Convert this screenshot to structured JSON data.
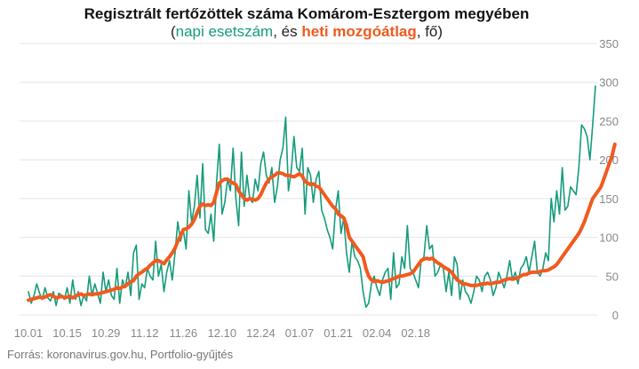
{
  "colors": {
    "daily": "#169b7c",
    "weekly": "#f15a1e",
    "grid": "#e4e4e4",
    "tick": "#888888"
  },
  "source": "Forrás: koronavirus.gov.hu, Portfolio-gyűjtés",
  "chart_data": {
    "type": "line",
    "title": "Regisztrált fertőzöttek száma Komárom-Esztergom megyében",
    "subtitle_parts": [
      {
        "text": "(",
        "style": "plain"
      },
      {
        "text": "napi esetszám",
        "style": "daily"
      },
      {
        "text": ", és ",
        "style": "plain"
      },
      {
        "text": "heti mozgóátlag",
        "style": "weekly"
      },
      {
        "text": ", fő)",
        "style": "plain"
      }
    ],
    "x_tick_labels": [
      "10.01",
      "10.15",
      "10.29",
      "11.12",
      "11.26",
      "12.10",
      "12.24",
      "01.07",
      "01.21",
      "02.04",
      "02.18"
    ],
    "x_tick_every_days": 14,
    "ylim": [
      0,
      350
    ],
    "y_ticks": [
      0,
      50,
      100,
      150,
      200,
      250,
      300,
      350
    ],
    "grid": true,
    "series": [
      {
        "name": "napi esetszám",
        "style": "daily",
        "values": [
          30,
          15,
          25,
          40,
          28,
          20,
          35,
          22,
          18,
          30,
          12,
          28,
          25,
          20,
          35,
          15,
          45,
          20,
          30,
          12,
          25,
          18,
          50,
          25,
          40,
          28,
          15,
          55,
          30,
          45,
          25,
          20,
          60,
          15,
          45,
          35,
          55,
          25,
          80,
          90,
          20,
          40,
          35,
          60,
          50,
          45,
          95,
          50,
          65,
          30,
          55,
          70,
          45,
          80,
          120,
          95,
          110,
          85,
          160,
          120,
          140,
          180,
          125,
          195,
          110,
          105,
          130,
          95,
          170,
          220,
          130,
          145,
          175,
          160,
          215,
          150,
          115,
          210,
          140,
          180,
          150,
          145,
          175,
          160,
          195,
          210,
          180,
          170,
          190,
          145,
          165,
          200,
          215,
          255,
          160,
          185,
          230,
          190,
          185,
          215,
          130,
          190,
          180,
          145,
          175,
          185,
          135,
          125,
          110,
          100,
          85,
          135,
          160,
          105,
          125,
          80,
          55,
          95,
          75,
          70,
          60,
          30,
          10,
          15,
          40,
          50,
          35,
          25,
          45,
          55,
          60,
          20,
          80,
          35,
          40,
          75,
          60,
          115,
          60,
          55,
          45,
          35,
          70,
          75,
          115,
          85,
          90,
          50,
          55,
          65,
          60,
          30,
          55,
          25,
          75,
          65,
          20,
          45,
          30,
          25,
          15,
          30,
          50,
          45,
          30,
          50,
          55,
          45,
          25,
          35,
          55,
          45,
          35,
          50,
          70,
          45,
          55,
          40,
          60,
          65,
          75,
          55,
          75,
          95,
          55,
          50,
          60,
          80,
          70,
          150,
          120,
          160,
          130,
          190,
          135,
          140,
          165,
          160,
          155,
          190,
          245,
          240,
          230,
          200,
          245,
          295
        ]
      },
      {
        "name": "heti mozgóátlag",
        "style": "weekly",
        "values": [
          19,
          20,
          21,
          22,
          23,
          22,
          23,
          25,
          26,
          24,
          22,
          23,
          24,
          22,
          23,
          24,
          22,
          24,
          26,
          27,
          25,
          26,
          27,
          26,
          27,
          27,
          28,
          29,
          30,
          31,
          32,
          33,
          35,
          34,
          36,
          37,
          40,
          43,
          44,
          50,
          53,
          55,
          58,
          60,
          64,
          67,
          70,
          70,
          68,
          66,
          71,
          75,
          80,
          86,
          95,
          102,
          110,
          111,
          113,
          117,
          123,
          132,
          140,
          143,
          141,
          142,
          141,
          145,
          158,
          170,
          173,
          175,
          175,
          172,
          170,
          168,
          160,
          155,
          150,
          148,
          150,
          149,
          148,
          150,
          155,
          163,
          170,
          175,
          178,
          180,
          183,
          183,
          182,
          180,
          180,
          179,
          178,
          180,
          182,
          179,
          172,
          170,
          168,
          169,
          166,
          165,
          160,
          155,
          150,
          145,
          140,
          137,
          130,
          128,
          125,
          115,
          100,
          95,
          90,
          85,
          80,
          75,
          60,
          50,
          45,
          43,
          44,
          43,
          42,
          43,
          44,
          45,
          47,
          48,
          50,
          50,
          51,
          52,
          53,
          55,
          60,
          65,
          70,
          72,
          73,
          72,
          73,
          70,
          67,
          65,
          62,
          60,
          58,
          55,
          50,
          45,
          43,
          40,
          40,
          39,
          38,
          38,
          38,
          39,
          40,
          40,
          41,
          40,
          41,
          42,
          42,
          43,
          45,
          46,
          47,
          46,
          47,
          48,
          50,
          52,
          52,
          54,
          55,
          55,
          55,
          56,
          57,
          57,
          58,
          60,
          62,
          65,
          70,
          75,
          80,
          85,
          90,
          95,
          100,
          105,
          112,
          120,
          130,
          140,
          150,
          155,
          160,
          165,
          175,
          185,
          195,
          205,
          220
        ]
      }
    ]
  }
}
